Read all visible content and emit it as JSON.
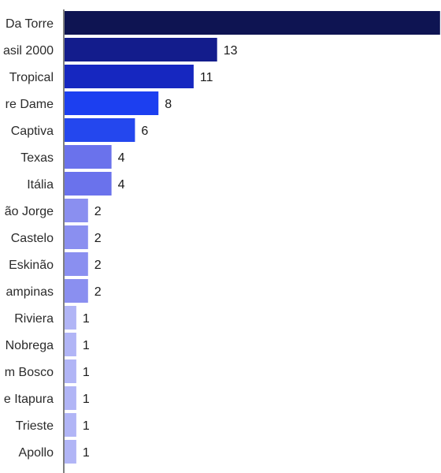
{
  "chart_data": {
    "type": "bar",
    "orientation": "horizontal",
    "title": "",
    "xlabel": "",
    "ylabel": "",
    "categories": [
      "Da Torre",
      "asil 2000",
      "Tropical",
      "re Dame",
      "Captiva",
      "Texas",
      "Itália",
      "ão Jorge",
      "Castelo",
      "Eskinão",
      "ampinas",
      "Riviera",
      "Nobrega",
      "m Bosco",
      "e Itapura",
      "Trieste",
      "Apollo"
    ],
    "values": [
      null,
      13,
      11,
      8,
      6,
      4,
      4,
      2,
      2,
      2,
      2,
      1,
      1,
      1,
      1,
      1,
      1
    ],
    "bar_lengths": [
      32,
      13,
      11,
      8,
      6,
      4,
      4,
      2,
      2,
      2,
      2,
      1,
      1,
      1,
      1,
      1,
      1
    ],
    "bar_colors": [
      "#0e1452",
      "#131c8c",
      "#1627c0",
      "#1c3ff0",
      "#2447ee",
      "#6a72ec",
      "#6a72ec",
      "#8a8ff0",
      "#8a8ff0",
      "#8a8ff0",
      "#8a8ff0",
      "#b1b5f6",
      "#b1b5f6",
      "#b1b5f6",
      "#b1b5f6",
      "#b1b5f6",
      "#b1b5f6"
    ],
    "grid": false
  }
}
